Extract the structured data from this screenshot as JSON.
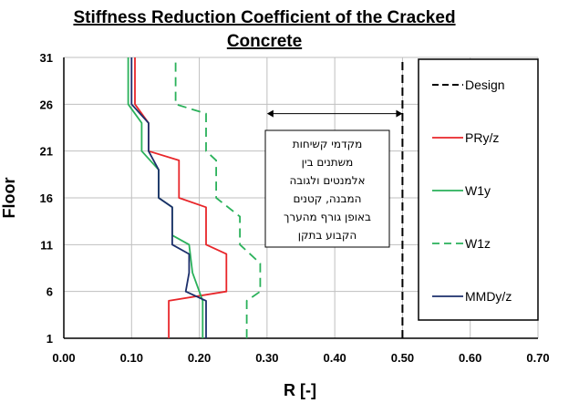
{
  "chart_data": {
    "type": "line",
    "title_lines": [
      "Stiffness Reduction Coefficient of the Cracked",
      "Concrete"
    ],
    "xlabel": "R [-]",
    "ylabel": "Floor",
    "xlim": [
      0.0,
      0.7
    ],
    "ylim": [
      1,
      31
    ],
    "x_ticks": [
      0.0,
      0.1,
      0.2,
      0.3,
      0.4,
      0.5,
      0.6,
      0.7
    ],
    "x_tick_labels": [
      "0.00",
      "0.10",
      "0.20",
      "0.30",
      "0.40",
      "0.50",
      "0.60",
      "0.70"
    ],
    "y_ticks": [
      1,
      6,
      11,
      16,
      21,
      26,
      31
    ],
    "y_tick_labels": [
      "1",
      "6",
      "11",
      "16",
      "21",
      "26",
      "31"
    ],
    "grid": true,
    "legend_position": "right",
    "series": [
      {
        "name": "Design",
        "legend_label": "Design",
        "color": "#000000",
        "dash": "dashed",
        "points": [
          [
            0.5,
            1
          ],
          [
            0.5,
            31
          ]
        ]
      },
      {
        "name": "PRy/z",
        "legend_label": "PRy/z",
        "color": "#e8262a",
        "dash": "solid",
        "points": [
          [
            0.155,
            1
          ],
          [
            0.155,
            4
          ],
          [
            0.155,
            5
          ],
          [
            0.24,
            6
          ],
          [
            0.24,
            10
          ],
          [
            0.21,
            11
          ],
          [
            0.21,
            15
          ],
          [
            0.17,
            16
          ],
          [
            0.17,
            20
          ],
          [
            0.125,
            21
          ],
          [
            0.125,
            24
          ],
          [
            0.105,
            26
          ],
          [
            0.105,
            31
          ]
        ]
      },
      {
        "name": "W1y",
        "legend_label": "W1y",
        "color": "#2ab15a",
        "dash": "solid",
        "points": [
          [
            0.205,
            1
          ],
          [
            0.205,
            4
          ],
          [
            0.205,
            5
          ],
          [
            0.2,
            6
          ],
          [
            0.19,
            8
          ],
          [
            0.185,
            11
          ],
          [
            0.16,
            12
          ],
          [
            0.16,
            15
          ],
          [
            0.14,
            16
          ],
          [
            0.14,
            19
          ],
          [
            0.115,
            21
          ],
          [
            0.115,
            24
          ],
          [
            0.095,
            26
          ],
          [
            0.095,
            31
          ]
        ]
      },
      {
        "name": "W1z",
        "legend_label": "W1z",
        "color": "#2ab15a",
        "dash": "dashed",
        "points": [
          [
            0.27,
            1
          ],
          [
            0.27,
            4
          ],
          [
            0.27,
            5
          ],
          [
            0.29,
            6
          ],
          [
            0.29,
            9
          ],
          [
            0.26,
            11
          ],
          [
            0.26,
            14
          ],
          [
            0.225,
            16
          ],
          [
            0.225,
            20
          ],
          [
            0.21,
            21
          ],
          [
            0.21,
            25
          ],
          [
            0.165,
            26
          ],
          [
            0.165,
            31
          ]
        ]
      },
      {
        "name": "MMDy/z",
        "legend_label": "MMDy/z",
        "color": "#1c2f6b",
        "dash": "solid",
        "points": [
          [
            0.21,
            1
          ],
          [
            0.21,
            4
          ],
          [
            0.21,
            5
          ],
          [
            0.18,
            6
          ],
          [
            0.185,
            8
          ],
          [
            0.185,
            10
          ],
          [
            0.16,
            11
          ],
          [
            0.16,
            15
          ],
          [
            0.14,
            16
          ],
          [
            0.14,
            19
          ],
          [
            0.125,
            21
          ],
          [
            0.125,
            24
          ],
          [
            0.1,
            26
          ],
          [
            0.1,
            31
          ]
        ]
      }
    ],
    "annotation": {
      "text_lines": [
        "מקדמי קשיחות",
        "משתנים בין",
        "אלמנטים ולגובה",
        "המבנה, קטנים",
        "באופן גורף מהערך",
        "הקבוע בתקן"
      ],
      "arrow_from": [
        0.3,
        25
      ],
      "arrow_to": [
        0.5,
        25
      ]
    }
  }
}
